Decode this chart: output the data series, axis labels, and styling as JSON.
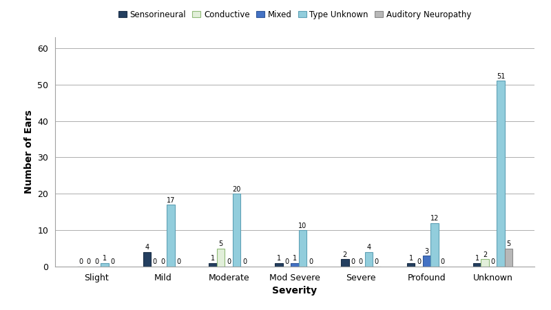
{
  "categories": [
    "Slight",
    "Mild",
    "Moderate",
    "Mod Severe",
    "Severe",
    "Profound",
    "Unknown"
  ],
  "series": {
    "Sensorineural": [
      0,
      4,
      1,
      1,
      2,
      1,
      1
    ],
    "Conductive": [
      0,
      0,
      5,
      0,
      0,
      0,
      2
    ],
    "Mixed": [
      0,
      0,
      0,
      1,
      0,
      3,
      0
    ],
    "Type Unknown": [
      1,
      17,
      20,
      10,
      4,
      12,
      51
    ],
    "Auditory Neuropathy": [
      0,
      0,
      0,
      0,
      0,
      0,
      5
    ]
  },
  "colors": {
    "Sensorineural": "#243F60",
    "Conductive": "#E2EFDA",
    "Mixed": "#4472C4",
    "Type Unknown": "#92CDDC",
    "Auditory Neuropathy": "#B8B8B8"
  },
  "edge_colors": {
    "Sensorineural": "#1a2e47",
    "Conductive": "#8fba78",
    "Mixed": "#2e5597",
    "Type Unknown": "#5da0b5",
    "Auditory Neuropathy": "#888888"
  },
  "xlabel": "Severity",
  "ylabel": "Number of Ears",
  "ylim": [
    0,
    63
  ],
  "yticks": [
    0,
    10,
    20,
    30,
    40,
    50,
    60
  ],
  "bar_width": 0.12,
  "legend_order": [
    "Sensorineural",
    "Conductive",
    "Mixed",
    "Type Unknown",
    "Auditory Neuropathy"
  ],
  "bg_color": "#FFFFFF",
  "grid_color": "#A0A0A0"
}
